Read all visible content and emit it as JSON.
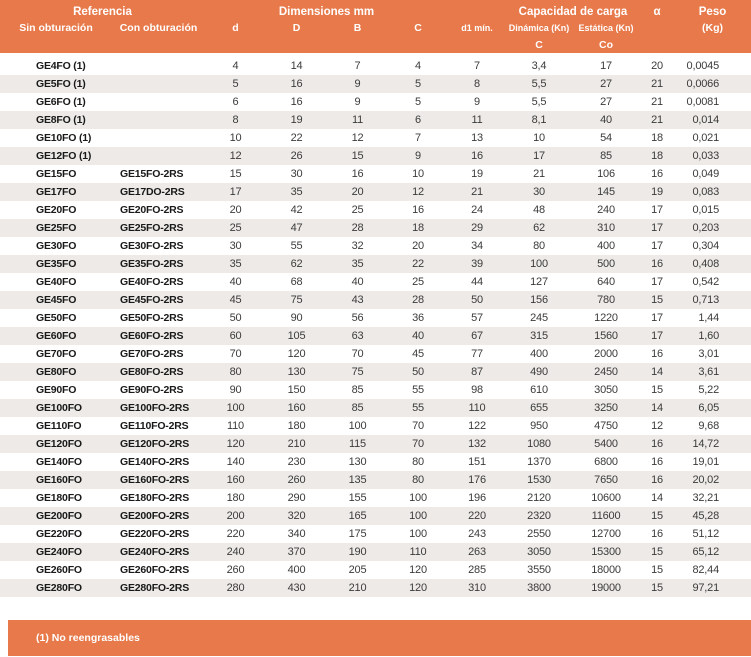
{
  "header": {
    "group_referencia": "Referencia",
    "group_dimensiones": "Dimensiones mm",
    "group_capacidad": "Capacidad de carga",
    "group_alpha": "α",
    "group_peso": "Peso",
    "sin_obturacion": "Sin obturación",
    "con_obturacion": "Con obturación",
    "col_d": "d",
    "col_D": "D",
    "col_B": "B",
    "col_C": "C",
    "col_d1": "d1 mín.",
    "col_dinamica": "Dinámica (Kn)",
    "col_estatica": "Estática (Kn)",
    "sub_dinamica": "C",
    "sub_estatica": "Co",
    "peso_unit": "(Kg)"
  },
  "columns": [
    "sin_obturacion",
    "con_obturacion",
    "d",
    "D",
    "B",
    "C",
    "d1_min",
    "dinamica_C",
    "estatica_Co",
    "alpha",
    "peso_kg"
  ],
  "rows": [
    [
      "GE4FO (1)",
      "",
      "4",
      "14",
      "7",
      "4",
      "7",
      "3,4",
      "17",
      "20",
      "0,0045"
    ],
    [
      "GE5FO (1)",
      "",
      "5",
      "16",
      "9",
      "5",
      "8",
      "5,5",
      "27",
      "21",
      "0,0066"
    ],
    [
      "GE6FO (1)",
      "",
      "6",
      "16",
      "9",
      "5",
      "9",
      "5,5",
      "27",
      "21",
      "0,0081"
    ],
    [
      "GE8FO (1)",
      "",
      "8",
      "19",
      "11",
      "6",
      "11",
      "8,1",
      "40",
      "21",
      "0,014"
    ],
    [
      "GE10FO (1)",
      "",
      "10",
      "22",
      "12",
      "7",
      "13",
      "10",
      "54",
      "18",
      "0,021"
    ],
    [
      "GE12FO (1)",
      "",
      "12",
      "26",
      "15",
      "9",
      "16",
      "17",
      "85",
      "18",
      "0,033"
    ],
    [
      "GE15FO",
      "GE15FO-2RS",
      "15",
      "30",
      "16",
      "10",
      "19",
      "21",
      "106",
      "16",
      "0,049"
    ],
    [
      "GE17FO",
      "GE17DO-2RS",
      "17",
      "35",
      "20",
      "12",
      "21",
      "30",
      "145",
      "19",
      "0,083"
    ],
    [
      "GE20FO",
      "GE20FO-2RS",
      "20",
      "42",
      "25",
      "16",
      "24",
      "48",
      "240",
      "17",
      "0,015"
    ],
    [
      "GE25FO",
      "GE25FO-2RS",
      "25",
      "47",
      "28",
      "18",
      "29",
      "62",
      "310",
      "17",
      "0,203"
    ],
    [
      "GE30FO",
      "GE30FO-2RS",
      "30",
      "55",
      "32",
      "20",
      "34",
      "80",
      "400",
      "17",
      "0,304"
    ],
    [
      "GE35FO",
      "GE35FO-2RS",
      "35",
      "62",
      "35",
      "22",
      "39",
      "100",
      "500",
      "16",
      "0,408"
    ],
    [
      "GE40FO",
      "GE40FO-2RS",
      "40",
      "68",
      "40",
      "25",
      "44",
      "127",
      "640",
      "17",
      "0,542"
    ],
    [
      "GE45FO",
      "GE45FO-2RS",
      "45",
      "75",
      "43",
      "28",
      "50",
      "156",
      "780",
      "15",
      "0,713"
    ],
    [
      "GE50FO",
      "GE50FO-2RS",
      "50",
      "90",
      "56",
      "36",
      "57",
      "245",
      "1220",
      "17",
      "1,44"
    ],
    [
      "GE60FO",
      "GE60FO-2RS",
      "60",
      "105",
      "63",
      "40",
      "67",
      "315",
      "1560",
      "17",
      "1,60"
    ],
    [
      "GE70FO",
      "GE70FO-2RS",
      "70",
      "120",
      "70",
      "45",
      "77",
      "400",
      "2000",
      "16",
      "3,01"
    ],
    [
      "GE80FO",
      "GE80FO-2RS",
      "80",
      "130",
      "75",
      "50",
      "87",
      "490",
      "2450",
      "14",
      "3,61"
    ],
    [
      "GE90FO",
      "GE90FO-2RS",
      "90",
      "150",
      "85",
      "55",
      "98",
      "610",
      "3050",
      "15",
      "5,22"
    ],
    [
      "GE100FO",
      "GE100FO-2RS",
      "100",
      "160",
      "85",
      "55",
      "110",
      "655",
      "3250",
      "14",
      "6,05"
    ],
    [
      "GE110FO",
      "GE110FO-2RS",
      "110",
      "180",
      "100",
      "70",
      "122",
      "950",
      "4750",
      "12",
      "9,68"
    ],
    [
      "GE120FO",
      "GE120FO-2RS",
      "120",
      "210",
      "115",
      "70",
      "132",
      "1080",
      "5400",
      "16",
      "14,72"
    ],
    [
      "GE140FO",
      "GE140FO-2RS",
      "140",
      "230",
      "130",
      "80",
      "151",
      "1370",
      "6800",
      "16",
      "19,01"
    ],
    [
      "GE160FO",
      "GE160FO-2RS",
      "160",
      "260",
      "135",
      "80",
      "176",
      "1530",
      "7650",
      "16",
      "20,02"
    ],
    [
      "GE180FO",
      "GE180FO-2RS",
      "180",
      "290",
      "155",
      "100",
      "196",
      "2120",
      "10600",
      "14",
      "32,21"
    ],
    [
      "GE200FO",
      "GE200FO-2RS",
      "200",
      "320",
      "165",
      "100",
      "220",
      "2320",
      "11600",
      "15",
      "45,28"
    ],
    [
      "GE220FO",
      "GE220FO-2RS",
      "220",
      "340",
      "175",
      "100",
      "243",
      "2550",
      "12700",
      "16",
      "51,12"
    ],
    [
      "GE240FO",
      "GE240FO-2RS",
      "240",
      "370",
      "190",
      "110",
      "263",
      "3050",
      "15300",
      "15",
      "65,12"
    ],
    [
      "GE260FO",
      "GE260FO-2RS",
      "260",
      "400",
      "205",
      "120",
      "285",
      "3550",
      "18000",
      "15",
      "82,44"
    ],
    [
      "GE280FO",
      "GE280FO-2RS",
      "280",
      "430",
      "210",
      "120",
      "310",
      "3800",
      "19000",
      "15",
      "97,21"
    ]
  ],
  "footnote": "(1) No reengrasables",
  "colors": {
    "accent_orange": "#E8794A",
    "row_stripe": "#EDEAE7",
    "body_text": "#3b3b3b",
    "reference_text": "#191919",
    "header_text": "#ffffff"
  }
}
